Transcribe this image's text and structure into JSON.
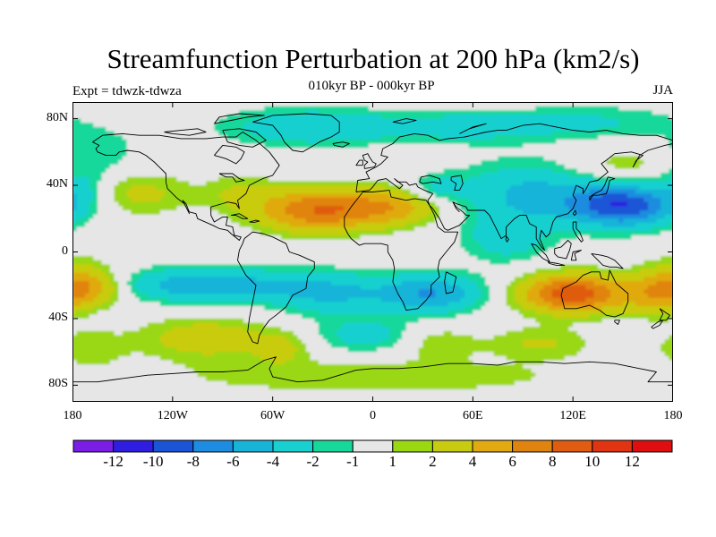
{
  "title": "Streamfunction Perturbation at 200 hPa (km2/s)",
  "left_label": "Expt = tdwzk-tdwza",
  "center_label": "010kyr BP - 000kyr BP",
  "right_label": "JJA",
  "map": {
    "projection": "cylindrical equidistant",
    "lon_range": [
      -180,
      180
    ],
    "lat_range": [
      -90,
      90
    ],
    "lat_ticks": [
      {
        "lat": 80,
        "label": "80N"
      },
      {
        "lat": 40,
        "label": "40N"
      },
      {
        "lat": 0,
        "label": "0"
      },
      {
        "lat": -40,
        "label": "40S"
      },
      {
        "lat": -80,
        "label": "80S"
      }
    ],
    "lon_ticks": [
      {
        "lon": -180,
        "label": "180"
      },
      {
        "lon": -120,
        "label": "120W"
      },
      {
        "lon": -60,
        "label": "60W"
      },
      {
        "lon": 0,
        "label": "0"
      },
      {
        "lon": 60,
        "label": "60E"
      },
      {
        "lon": 120,
        "label": "120E"
      },
      {
        "lon": 180,
        "label": "180"
      }
    ],
    "field_blobs": [
      {
        "lon": -165,
        "lat": 60,
        "v": -1.8,
        "sx": 18,
        "sy": 10
      },
      {
        "lon": -40,
        "lat": 75,
        "v": -3.5,
        "sx": 35,
        "sy": 8
      },
      {
        "lon": 55,
        "lat": 75,
        "v": -2.8,
        "sx": 40,
        "sy": 7
      },
      {
        "lon": 135,
        "lat": 78,
        "v": -2.0,
        "sx": 35,
        "sy": 7
      },
      {
        "lon": -175,
        "lat": 40,
        "v": -2.5,
        "sx": 12,
        "sy": 10
      },
      {
        "lon": -140,
        "lat": 35,
        "v": 2.5,
        "sx": 22,
        "sy": 9
      },
      {
        "lon": -80,
        "lat": 35,
        "v": 2.0,
        "sx": 15,
        "sy": 8
      },
      {
        "lon": -35,
        "lat": 25,
        "v": 7.5,
        "sx": 24,
        "sy": 9
      },
      {
        "lon": 10,
        "lat": 27,
        "v": 5.0,
        "sx": 22,
        "sy": 8
      },
      {
        "lon": 38,
        "lat": 38,
        "v": -2.5,
        "sx": 12,
        "sy": 6
      },
      {
        "lon": 95,
        "lat": 35,
        "v": -4.5,
        "sx": 30,
        "sy": 13
      },
      {
        "lon": 150,
        "lat": 28,
        "v": -9.5,
        "sx": 22,
        "sy": 9
      },
      {
        "lon": 80,
        "lat": 8,
        "v": -3.0,
        "sx": 18,
        "sy": 10
      },
      {
        "lon": 152,
        "lat": 50,
        "v": 2.0,
        "sx": 25,
        "sy": 9
      },
      {
        "lon": -175,
        "lat": -15,
        "v": 1.8,
        "sx": 16,
        "sy": 10
      },
      {
        "lon": -170,
        "lat": -22,
        "v": 4.5,
        "sx": 15,
        "sy": 7
      },
      {
        "lon": -100,
        "lat": -20,
        "v": -5.5,
        "sx": 38,
        "sy": 7
      },
      {
        "lon": -25,
        "lat": -25,
        "v": -4.0,
        "sx": 25,
        "sy": 9
      },
      {
        "lon": 35,
        "lat": -25,
        "v": -6.0,
        "sx": 22,
        "sy": 8
      },
      {
        "lon": 120,
        "lat": -25,
        "v": 9.5,
        "sx": 22,
        "sy": 8
      },
      {
        "lon": 170,
        "lat": -25,
        "v": 4.0,
        "sx": 14,
        "sy": 9
      },
      {
        "lon": -100,
        "lat": -52,
        "v": 3.2,
        "sx": 28,
        "sy": 9
      },
      {
        "lon": -55,
        "lat": -58,
        "v": 2.2,
        "sx": 12,
        "sy": 7
      },
      {
        "lon": -5,
        "lat": -50,
        "v": -2.8,
        "sx": 20,
        "sy": 7
      },
      {
        "lon": 40,
        "lat": -55,
        "v": 1.8,
        "sx": 15,
        "sy": 7
      },
      {
        "lon": 100,
        "lat": -55,
        "v": 2.2,
        "sx": 22,
        "sy": 7
      },
      {
        "lon": -170,
        "lat": -58,
        "v": 1.8,
        "sx": 15,
        "sy": 8
      },
      {
        "lon": 0,
        "lat": -75,
        "v": 2.0,
        "sx": 80,
        "sy": 7
      }
    ],
    "colors": [
      "#7a1ee6",
      "#2f1ee0",
      "#1b55d6",
      "#1e8ce0",
      "#18b4d8",
      "#18d0d0",
      "#16d89a",
      "#e6e6e6",
      "#9ad812",
      "#c8cc10",
      "#e0aa10",
      "#e08410",
      "#e05c10",
      "#e03412",
      "#e00e0e"
    ]
  },
  "colorbar": {
    "levels": [
      -14,
      -12,
      -10,
      -8,
      -6,
      -4,
      -2,
      -1,
      1,
      2,
      4,
      6,
      8,
      10,
      12,
      14
    ],
    "labels": [
      {
        "value": "-12",
        "boundary": 1
      },
      {
        "value": "-10",
        "boundary": 2
      },
      {
        "value": "-8",
        "boundary": 3
      },
      {
        "value": "-6",
        "boundary": 4
      },
      {
        "value": "-4",
        "boundary": 5
      },
      {
        "value": "-2",
        "boundary": 6
      },
      {
        "value": "-1",
        "boundary": 7
      },
      {
        "value": "1",
        "boundary": 8
      },
      {
        "value": "2",
        "boundary": 9
      },
      {
        "value": "4",
        "boundary": 10
      },
      {
        "value": "6",
        "boundary": 11
      },
      {
        "value": "8",
        "boundary": 12
      },
      {
        "value": "10",
        "boundary": 13
      },
      {
        "value": "12",
        "boundary": 14
      }
    ]
  }
}
